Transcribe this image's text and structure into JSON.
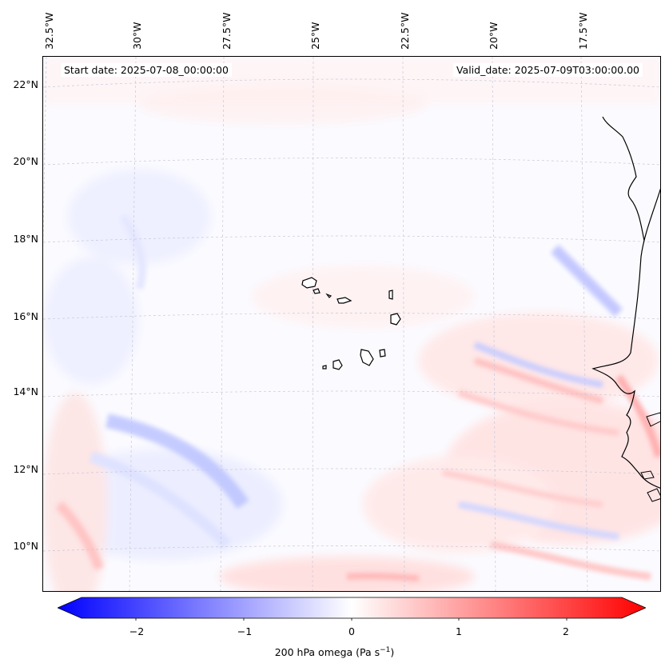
{
  "header": {
    "start_date": "Start date: 2025-07-08_00:00:00",
    "valid_date": "Valid_date: 2025-07-09T03:00:00.00"
  },
  "lat_labels": [
    "22°N",
    "20°N",
    "18°N",
    "16°N",
    "14°N",
    "12°N",
    "10°N"
  ],
  "lon_labels": [
    "32.5°W",
    "30°W",
    "27.5°W",
    "25°W",
    "22.5°W",
    "20°W",
    "17.5°W"
  ],
  "colorbar": {
    "label_main": "200 hPa omega (Pa s",
    "label_exp": "−1",
    "label_close": ")",
    "ticks": [
      "−2",
      "−1",
      "0",
      "1",
      "2"
    ],
    "min": -2.75,
    "max": 2.75,
    "negative_color": "#0000ff",
    "positive_color": "#ff0000"
  }
}
